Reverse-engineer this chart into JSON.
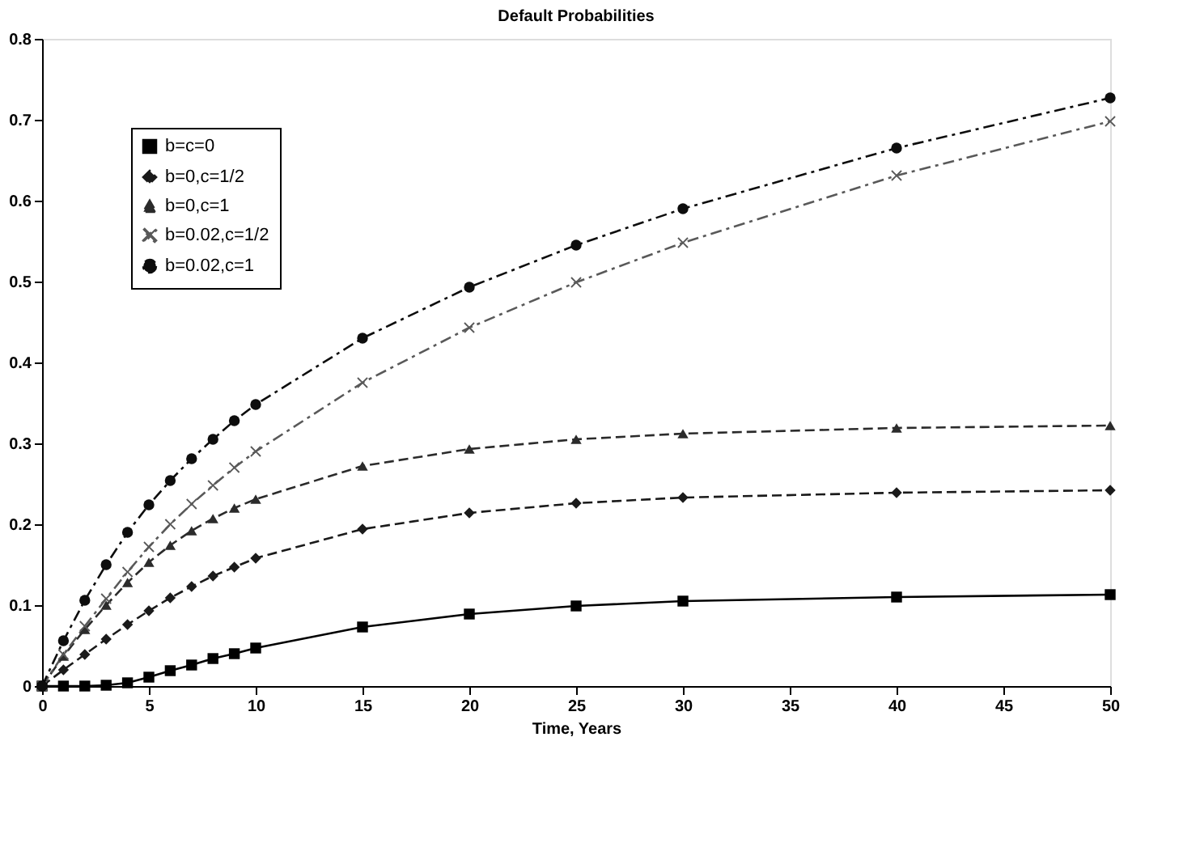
{
  "chart_data": {
    "type": "line",
    "title": "Default Probabilities",
    "xlabel": "Time, Years",
    "x": [
      0,
      1,
      2,
      3,
      4,
      5,
      6,
      7,
      8,
      9,
      10,
      15,
      20,
      25,
      30,
      40,
      50
    ],
    "series": [
      {
        "name": "b=c=0",
        "color": "#000000",
        "marker": "square",
        "line_style": "solid",
        "values": [
          0,
          0,
          0,
          0.001,
          0.004,
          0.011,
          0.019,
          0.026,
          0.034,
          0.04,
          0.047,
          0.073,
          0.089,
          0.099,
          0.105,
          0.11,
          0.113
        ]
      },
      {
        "name": "b=0,c=1/2",
        "color": "#1a1a1a",
        "marker": "diamond",
        "line_style": "dashed",
        "values": [
          0,
          0.02,
          0.039,
          0.058,
          0.076,
          0.093,
          0.109,
          0.123,
          0.136,
          0.147,
          0.158,
          0.194,
          0.214,
          0.226,
          0.233,
          0.239,
          0.242
        ]
      },
      {
        "name": "b=0,c=1",
        "color": "#2b2b2b",
        "marker": "triangle",
        "line_style": "dashed",
        "values": [
          0,
          0.037,
          0.07,
          0.1,
          0.128,
          0.153,
          0.174,
          0.192,
          0.207,
          0.22,
          0.231,
          0.272,
          0.293,
          0.305,
          0.312,
          0.319,
          0.322
        ]
      },
      {
        "name": "b=0.02,c=1/2",
        "color": "#595959",
        "marker": "cross",
        "line_style": "dotted",
        "values": [
          0,
          0.039,
          0.074,
          0.108,
          0.141,
          0.172,
          0.2,
          0.225,
          0.248,
          0.27,
          0.29,
          0.375,
          0.443,
          0.499,
          0.548,
          0.631,
          0.698
        ]
      },
      {
        "name": "b=0.02,c=1",
        "color": "#0d0d0d",
        "marker": "circle",
        "line_style": "dotted",
        "values": [
          0,
          0.056,
          0.106,
          0.15,
          0.19,
          0.224,
          0.254,
          0.281,
          0.305,
          0.328,
          0.348,
          0.43,
          0.493,
          0.545,
          0.59,
          0.665,
          0.727
        ]
      }
    ],
    "xlim": [
      0,
      50
    ],
    "xticks": [
      0,
      5,
      10,
      15,
      20,
      25,
      30,
      35,
      40,
      45,
      50
    ],
    "ylim": [
      0,
      0.8
    ],
    "yticks": [
      0,
      0.1,
      0.2,
      0.3,
      0.4,
      0.5,
      0.6,
      0.7,
      0.8
    ],
    "grid": false,
    "legend": "top left"
  }
}
